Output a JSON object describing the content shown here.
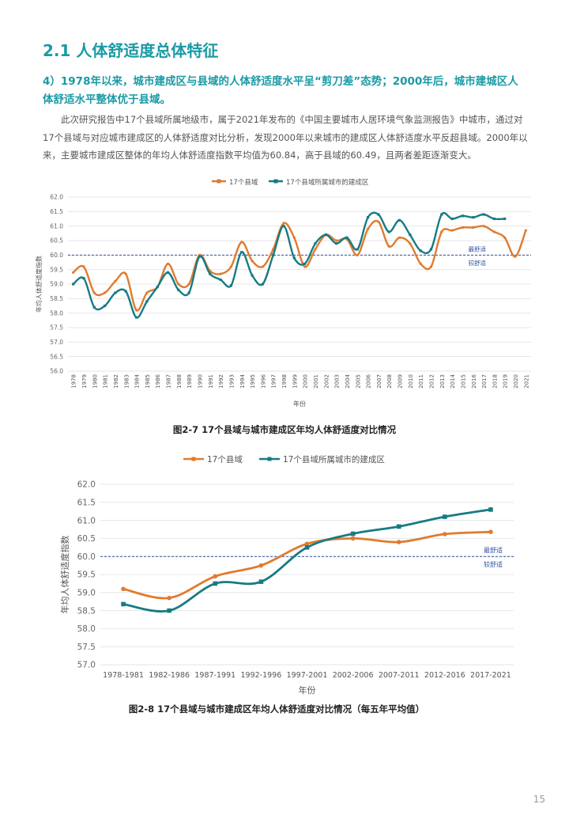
{
  "section": {
    "heading": "2.1 人体舒适度总体特征",
    "subheading": "4）1978年以来，城市建成区与县域的人体舒适度水平呈“剪刀差”态势；2000年后，城市建城区人体舒适水平整体优于县域。",
    "paragraph": "此次研究报告中17个县域所属地级市，属于2021年发布的《中国主要城市人居环境气象监测报告》中城市，通过对17个县域与对应城市建成区的人体舒适度对比分析，发现2000年以来城市的建成区人体舒适度水平反超县域。2000年以来，主要城市建成区整体的年均人体舒适度指数平均值为60.84，高于县域的60.49，且两者差距逐渐变大。"
  },
  "colors": {
    "county": "#e07b2e",
    "city": "#177b83",
    "reference": "#2e4fa0"
  },
  "chart_data": [
    {
      "type": "line",
      "caption": "图2-7 17个县域与城市建成区年均人体舒适度对比情况",
      "xlabel": "年份",
      "ylabel": "年均人体舒适度指数",
      "ylim": [
        56.0,
        62.0
      ],
      "yticks": [
        "62.0",
        "61.5",
        "61.0",
        "60.5",
        "60.0",
        "59.5",
        "59.0",
        "58.5",
        "58.0",
        "57.5",
        "57.0",
        "56.5",
        "56.0"
      ],
      "reference_line": {
        "value": 60.0,
        "label_above": "最舒适",
        "label_below": "较舒适"
      },
      "categories": [
        "1978",
        "1979",
        "1980",
        "1981",
        "1982",
        "1983",
        "1984",
        "1985",
        "1986",
        "1987",
        "1988",
        "1989",
        "1990",
        "1991",
        "1992",
        "1993",
        "1994",
        "1995",
        "1996",
        "1997",
        "1998",
        "1999",
        "2000",
        "2001",
        "2002",
        "2003",
        "2004",
        "2005",
        "2006",
        "2007",
        "2008",
        "2009",
        "2010",
        "2011",
        "2012",
        "2013",
        "2014",
        "2015",
        "2016",
        "2017",
        "2018",
        "2019",
        "2020",
        "2021"
      ],
      "series": [
        {
          "name": "17个县域",
          "values": [
            59.4,
            59.6,
            58.7,
            58.7,
            59.1,
            59.35,
            58.1,
            58.7,
            58.9,
            59.7,
            59.0,
            59.0,
            60.0,
            59.45,
            59.35,
            59.6,
            60.45,
            59.8,
            59.6,
            60.2,
            61.1,
            60.6,
            59.6,
            60.2,
            60.7,
            60.5,
            60.55,
            60.0,
            60.9,
            61.15,
            60.3,
            60.6,
            60.4,
            59.7,
            59.6,
            60.8,
            60.85,
            60.95,
            60.95,
            61.0,
            60.8,
            60.6,
            59.95,
            60.85
          ]
        },
        {
          "name": "17个县域所属城市的建成区",
          "values": [
            59.0,
            59.2,
            58.2,
            58.25,
            58.7,
            58.75,
            57.85,
            58.4,
            58.9,
            59.4,
            58.8,
            58.7,
            59.95,
            59.35,
            59.15,
            58.95,
            60.1,
            59.3,
            59.0,
            60.0,
            61.0,
            59.9,
            59.7,
            60.4,
            60.7,
            60.4,
            60.6,
            60.2,
            61.3,
            61.4,
            60.8,
            61.2,
            60.7,
            60.15,
            60.2,
            61.4,
            61.25,
            61.35,
            61.3,
            61.4,
            61.25,
            61.25,
            null,
            null
          ]
        }
      ]
    },
    {
      "type": "line",
      "caption": "图2-8 17个县域与城市建成区年均人体舒适度对比情况（每五年平均值）",
      "xlabel": "年份",
      "ylabel": "年均人体舒适度指数",
      "ylim": [
        57.0,
        62.0
      ],
      "yticks": [
        "62.0",
        "61.5",
        "61.0",
        "60.5",
        "60.0",
        "59.5",
        "59.0",
        "58.5",
        "58.0",
        "57.5",
        "57.0"
      ],
      "reference_line": {
        "value": 60.0,
        "label_above": "最舒适",
        "label_below": "较舒适"
      },
      "categories": [
        "1978-1981",
        "1982-1986",
        "1987-1991",
        "1992-1996",
        "1997-2001",
        "2002-2006",
        "2007-2011",
        "2012-2016",
        "2017-2021"
      ],
      "series": [
        {
          "name": "17个县域",
          "values": [
            59.1,
            58.85,
            59.45,
            59.75,
            60.35,
            60.5,
            60.4,
            60.62,
            60.68
          ]
        },
        {
          "name": "17个县域所属城市的建成区",
          "values": [
            58.68,
            58.5,
            59.25,
            59.3,
            60.25,
            60.63,
            60.83,
            61.1,
            61.3
          ]
        }
      ]
    }
  ],
  "page_number": "15"
}
